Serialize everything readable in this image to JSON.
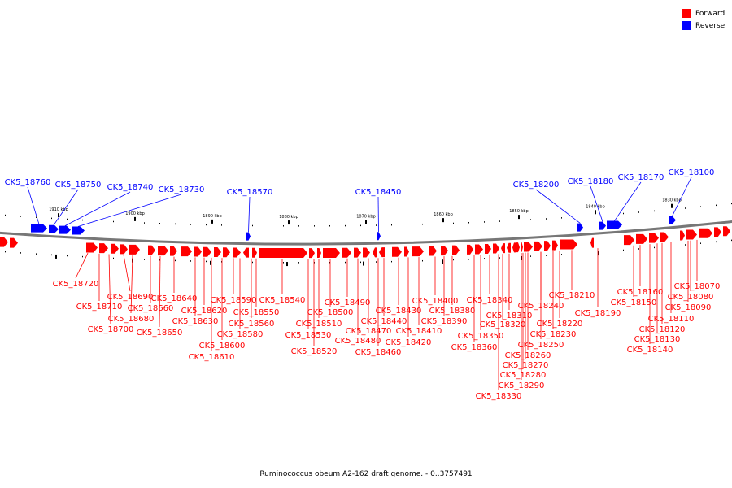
{
  "legend": {
    "forward_label": "Forward",
    "reverse_label": "Reverse",
    "forward_color": "#ff0000",
    "reverse_color": "#0000ff"
  },
  "caption": "Ruminococcus obeum A2-162 draft genome. - 0..3757491",
  "axis": {
    "tick_labels": [
      "1910 kbp",
      "1900 kbp",
      "1890 kbp",
      "1880 kbp",
      "1870 kbp",
      "1860 kbp",
      "1850 kbp",
      "1840 kbp",
      "1830 kbp"
    ]
  },
  "reverse_genes": [
    "CK5_18760",
    "CK5_18750",
    "CK5_18740",
    "CK5_18730",
    "CK5_18570",
    "CK5_18450",
    "CK5_18200",
    "CK5_18180",
    "CK5_18170",
    "CK5_18100"
  ],
  "forward_genes": [
    "CK5_18720",
    "CK5_18710",
    "CK5_18700",
    "CK5_18690",
    "CK5_18680",
    "CK5_18660",
    "CK5_18650",
    "CK5_18640",
    "CK5_18630",
    "CK5_18620",
    "CK5_18610",
    "CK5_18600",
    "CK5_18590",
    "CK5_18580",
    "CK5_18560",
    "CK5_18550",
    "CK5_18540",
    "CK5_18530",
    "CK5_18520",
    "CK5_18510",
    "CK5_18500",
    "CK5_18490",
    "CK5_18480",
    "CK5_18470",
    "CK5_18460",
    "CK5_18440",
    "CK5_18430",
    "CK5_18420",
    "CK5_18410",
    "CK5_18400",
    "CK5_18390",
    "CK5_18380",
    "CK5_18360",
    "CK5_18350",
    "CK5_18340",
    "CK5_18330",
    "CK5_18320",
    "CK5_18310",
    "CK5_18290",
    "CK5_18280",
    "CK5_18270",
    "CK5_18260",
    "CK5_18250",
    "CK5_18240",
    "CK5_18230",
    "CK5_18220",
    "CK5_18210",
    "CK5_18190",
    "CK5_18160",
    "CK5_18150",
    "CK5_18140",
    "CK5_18130",
    "CK5_18120",
    "CK5_18110",
    "CK5_18090",
    "CK5_18080",
    "CK5_18070"
  ]
}
